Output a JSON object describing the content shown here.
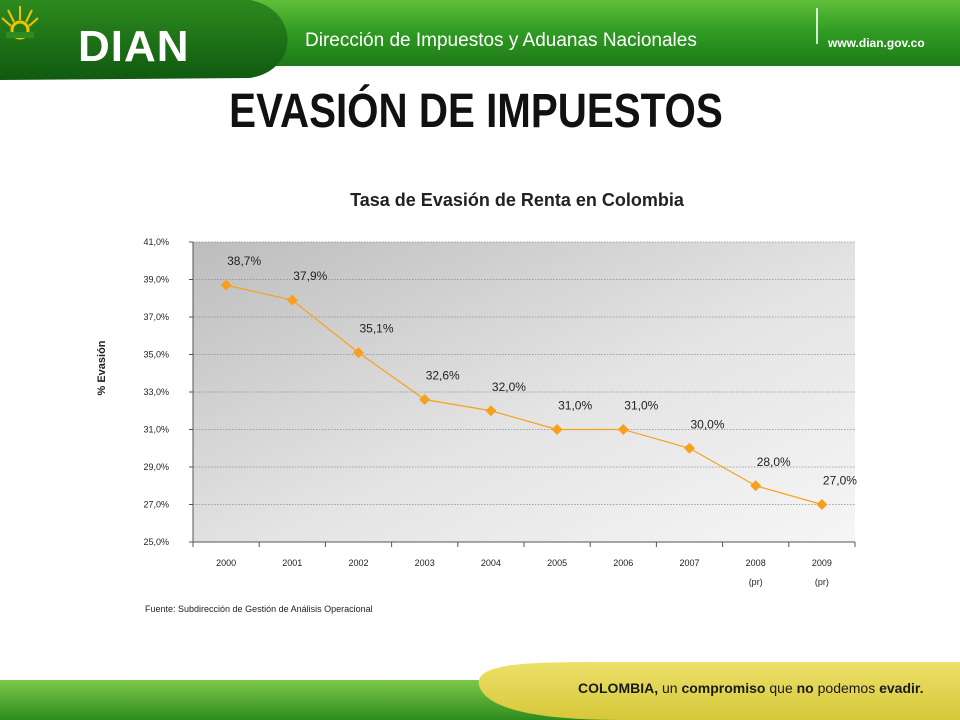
{
  "header": {
    "logo_text": "DIAN",
    "agency": "Dirección de Impuestos y Aduanas Nacionales",
    "website": "www.dian.gov.co"
  },
  "slide_title": "EVASIÓN DE IMPUESTOS",
  "source_note": "Fuente: Subdirección de Gestión de Análisis Operacional",
  "footer": {
    "slogan_1": "COLOMBIA,",
    "slogan_2": " un ",
    "slogan_3": "compromiso",
    "slogan_4": " que ",
    "slogan_5": "no",
    "slogan_6": " podemos ",
    "slogan_7": "evadir."
  },
  "colors": {
    "brand_green": "#2e8b22",
    "series": "#f7a01d",
    "footer_yellow": "#e2d44a"
  },
  "chart_data": {
    "type": "line",
    "title": "Tasa de Evasión de Renta en Colombia",
    "xlabel": "",
    "ylabel": "% Evasión",
    "categories": [
      "2000",
      "2001",
      "2002",
      "2003",
      "2004",
      "2005",
      "2006",
      "2007",
      "2008",
      "2009"
    ],
    "category_notes": [
      "",
      "",
      "",
      "",
      "",
      "",
      "",
      "",
      "(pr)",
      "(pr)"
    ],
    "series": [
      {
        "values": [
          38.7,
          37.9,
          35.1,
          32.6,
          32.0,
          31.0,
          31.0,
          30.0,
          28.0,
          27.0
        ],
        "labels": [
          "38,7%",
          "37,9%",
          "35,1%",
          "32,6%",
          "32,0%",
          "31,0%",
          "31,0%",
          "30,0%",
          "28,0%",
          "27,0%"
        ]
      }
    ],
    "ylim": [
      25,
      41
    ],
    "yticks": [
      "25,0%",
      "27,0%",
      "29,0%",
      "31,0%",
      "33,0%",
      "35,0%",
      "37,0%",
      "39,0%",
      "41,0%"
    ],
    "grid": true,
    "legend": "none"
  }
}
